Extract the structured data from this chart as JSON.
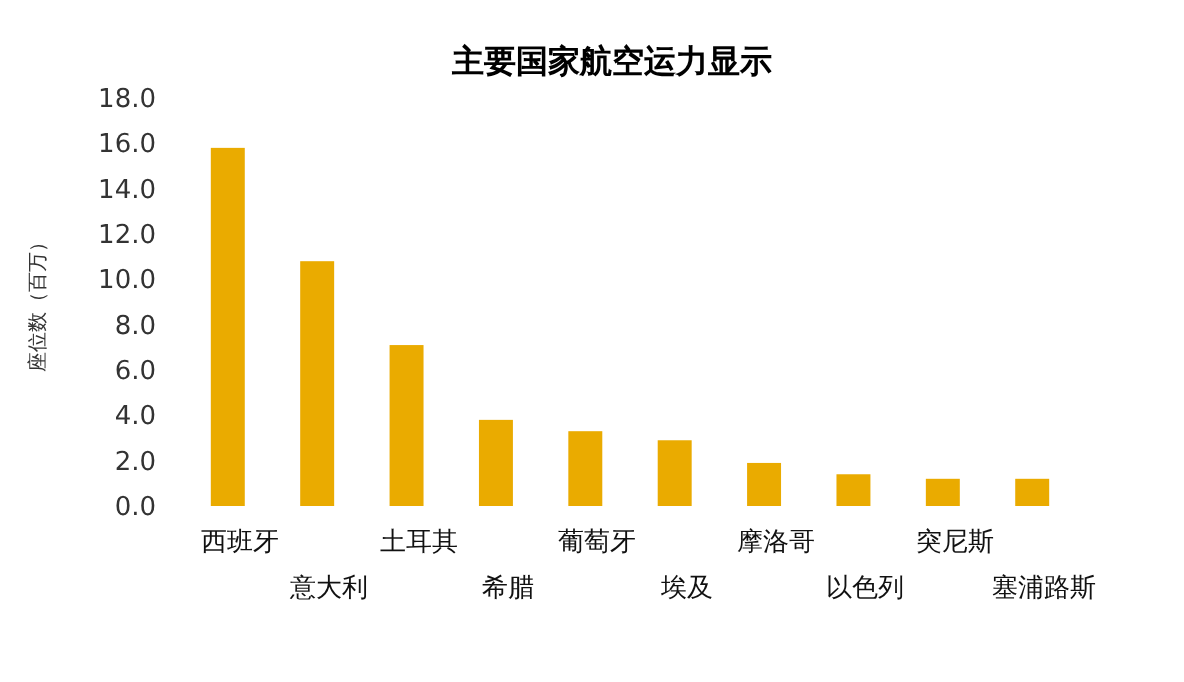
{
  "chart_data": {
    "type": "bar",
    "title": "主要国家航空运力显示",
    "ylabel": "座位数（百万）",
    "categories": [
      "西班牙",
      "意大利",
      "土耳其",
      "希腊",
      "葡萄牙",
      "埃及",
      "摩洛哥",
      "以色列",
      "突尼斯",
      "塞浦路斯"
    ],
    "values": [
      15.8,
      10.8,
      7.1,
      3.8,
      3.3,
      2.9,
      1.9,
      1.4,
      1.2,
      1.2
    ],
    "color": "#eaab00",
    "ylim": [
      0,
      18
    ],
    "yticks": [
      {
        "value": 0,
        "label": "0.0"
      },
      {
        "value": 2,
        "label": "2.0"
      },
      {
        "value": 4,
        "label": "4.0"
      },
      {
        "value": 6,
        "label": "6.0"
      },
      {
        "value": 8,
        "label": "8.0"
      },
      {
        "value": 10,
        "label": "10.0"
      },
      {
        "value": 12,
        "label": "12.0"
      },
      {
        "value": 14,
        "label": "14.0"
      },
      {
        "value": 16,
        "label": "16.0"
      },
      {
        "value": 18,
        "label": "18.0"
      }
    ]
  }
}
